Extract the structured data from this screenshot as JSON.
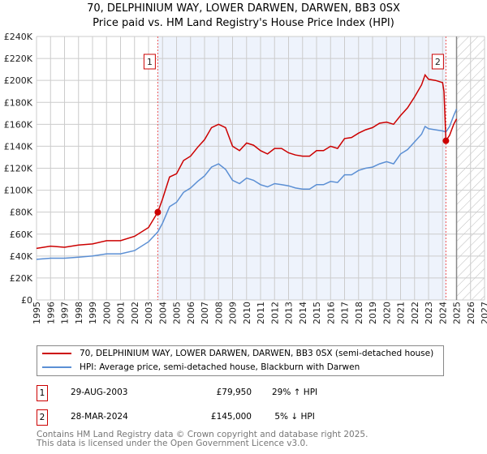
{
  "title": "70, DELPHINIUM WAY, LOWER DARWEN, DARWEN, BB3 0SX",
  "subtitle": "Price paid vs. HM Land Registry's House Price Index (HPI)",
  "chart_data": {
    "type": "line",
    "xlim": [
      1995,
      2027
    ],
    "ylim": [
      0,
      240000
    ],
    "x_ticks": [
      "1995",
      "1996",
      "1997",
      "1998",
      "1999",
      "2000",
      "2001",
      "2002",
      "2003",
      "2004",
      "2005",
      "2006",
      "2007",
      "2008",
      "2009",
      "2010",
      "2011",
      "2012",
      "2013",
      "2014",
      "2015",
      "2016",
      "2017",
      "2018",
      "2019",
      "2020",
      "2021",
      "2022",
      "2023",
      "2024",
      "2025",
      "2026",
      "2027"
    ],
    "y_ticks": [
      "£0",
      "£20K",
      "£40K",
      "£60K",
      "£80K",
      "£100K",
      "£120K",
      "£140K",
      "£160K",
      "£180K",
      "£200K",
      "£220K",
      "£240K"
    ],
    "grid": true,
    "shaded_range": [
      2003.66,
      2024.24
    ],
    "forecast_hatch_from": 2025,
    "series": [
      {
        "name": "70, DELPHINIUM WAY, LOWER DARWEN, DARWEN, BB3 0SX (semi-detached house)",
        "color": "#cc0000",
        "x": [
          1995,
          1996,
          1997,
          1998,
          1999,
          2000,
          2001,
          2002,
          2003,
          2003.66,
          2004,
          2004.5,
          2005,
          2005.5,
          2006,
          2006.5,
          2007,
          2007.5,
          2008,
          2008.5,
          2009,
          2009.5,
          2010,
          2010.5,
          2011,
          2011.5,
          2012,
          2012.5,
          2013,
          2013.5,
          2014,
          2014.5,
          2015,
          2015.5,
          2016,
          2016.5,
          2017,
          2017.5,
          2018,
          2018.5,
          2019,
          2019.5,
          2020,
          2020.5,
          2021,
          2021.5,
          2022,
          2022.5,
          2022.75,
          2023,
          2023.5,
          2024,
          2024.1,
          2024.24,
          2024.5,
          2024.8,
          2025
        ],
        "y": [
          47000,
          49000,
          48000,
          50000,
          51000,
          54000,
          54000,
          58000,
          66000,
          79950,
          92000,
          112000,
          115000,
          127000,
          131000,
          139000,
          146000,
          157000,
          160000,
          157000,
          140000,
          136000,
          143000,
          141000,
          136000,
          133000,
          138000,
          138000,
          134000,
          132000,
          131000,
          131000,
          136000,
          136000,
          140000,
          138000,
          147000,
          148000,
          152000,
          155000,
          157000,
          161000,
          162000,
          160000,
          168000,
          175000,
          185000,
          196000,
          205000,
          201000,
          200000,
          198000,
          190000,
          145000,
          150000,
          160000,
          165000
        ]
      },
      {
        "name": "HPI: Average price, semi-detached house, Blackburn with Darwen",
        "color": "#5b8fd4",
        "x": [
          1995,
          1996,
          1997,
          1998,
          1999,
          2000,
          2001,
          2002,
          2003,
          2003.66,
          2004,
          2004.5,
          2005,
          2005.5,
          2006,
          2006.5,
          2007,
          2007.5,
          2008,
          2008.5,
          2009,
          2009.5,
          2010,
          2010.5,
          2011,
          2011.5,
          2012,
          2012.5,
          2013,
          2013.5,
          2014,
          2014.5,
          2015,
          2015.5,
          2016,
          2016.5,
          2017,
          2017.5,
          2018,
          2018.5,
          2019,
          2019.5,
          2020,
          2020.5,
          2021,
          2021.5,
          2022,
          2022.5,
          2022.75,
          2023,
          2023.5,
          2024,
          2024.24,
          2024.5,
          2024.8,
          2025
        ],
        "y": [
          37000,
          38000,
          38000,
          39000,
          40000,
          42000,
          42000,
          45000,
          53000,
          62000,
          70000,
          85000,
          89000,
          98000,
          102000,
          108000,
          113000,
          121000,
          124000,
          119000,
          109000,
          106000,
          111000,
          109000,
          105000,
          103000,
          106000,
          105000,
          104000,
          102000,
          101000,
          101000,
          105000,
          105000,
          108000,
          107000,
          114000,
          114000,
          118000,
          120000,
          121000,
          124000,
          126000,
          124000,
          133000,
          137000,
          144000,
          151000,
          158000,
          156000,
          155000,
          154000,
          153000,
          158000,
          168000,
          174000
        ]
      }
    ],
    "annotations": [
      {
        "label": "1",
        "x": 2003.66,
        "y": 79950
      },
      {
        "label": "2",
        "x": 2024.24,
        "y": 145000
      }
    ]
  },
  "legend": {
    "property": "70, DELPHINIUM WAY, LOWER DARWEN, DARWEN, BB3 0SX (semi-detached house)",
    "hpi": "HPI: Average price, semi-detached house, Blackburn with Darwen"
  },
  "transactions": [
    {
      "num": "1",
      "date": "29-AUG-2003",
      "price": "£79,950",
      "hpi": "29% ↑ HPI"
    },
    {
      "num": "2",
      "date": "28-MAR-2024",
      "price": "£145,000",
      "hpi": " 5% ↓ HPI"
    }
  ],
  "footer": {
    "line1": "Contains HM Land Registry data © Crown copyright and database right 2025.",
    "line2": "This data is licensed under the Open Government Licence v3.0."
  }
}
